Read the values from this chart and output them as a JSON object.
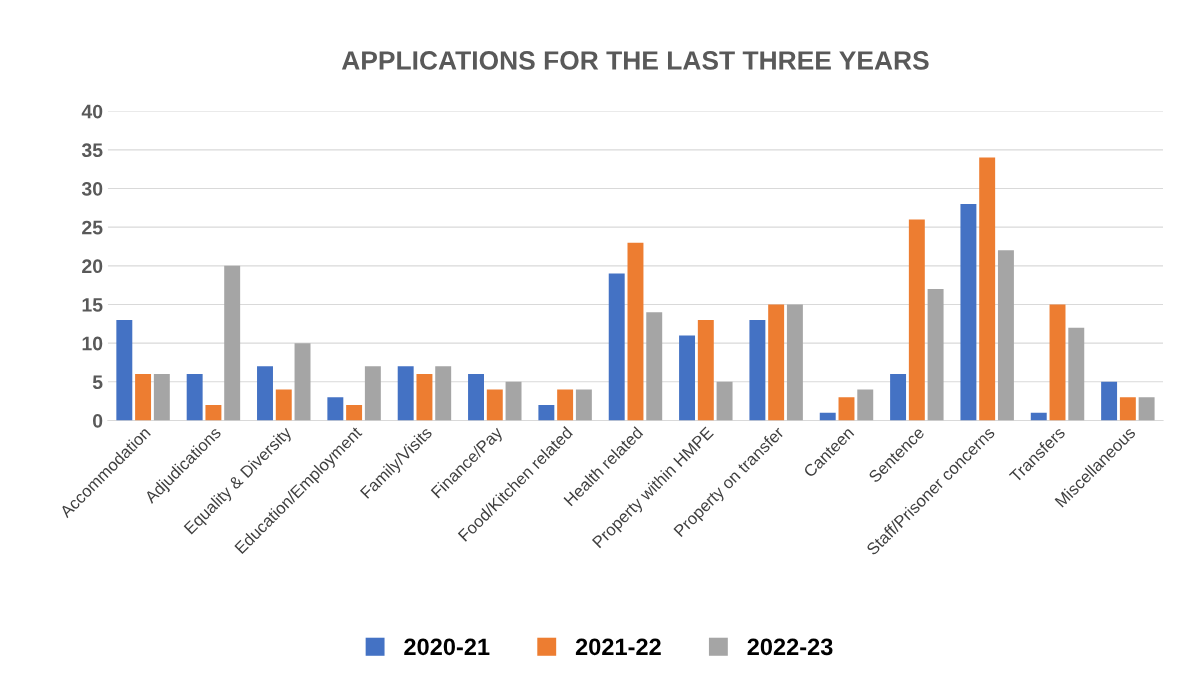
{
  "chart_data": {
    "type": "bar",
    "title": "APPLICATIONS FOR THE LAST THREE YEARS",
    "categories": [
      "Accommodation",
      "Adjudications",
      "Equality & Diversity",
      "Education/Employment",
      "Family/Visits",
      "Finance/Pay",
      "Food/Kitchen related",
      "Health related",
      "Property within HMPE",
      "Property on transfer",
      "Canteen",
      "Sentence",
      "Staff/Prisoner concerns",
      "Transfers",
      "Miscellaneous"
    ],
    "series": [
      {
        "name": "2020-21",
        "color": "#4472c4",
        "values": [
          13,
          6,
          7,
          3,
          7,
          6,
          2,
          19,
          11,
          13,
          1,
          6,
          28,
          1,
          5
        ]
      },
      {
        "name": "2021-22",
        "color": "#ed7d31",
        "values": [
          6,
          2,
          4,
          2,
          6,
          4,
          4,
          23,
          13,
          15,
          3,
          26,
          34,
          15,
          3
        ]
      },
      {
        "name": "2022-23",
        "color": "#a5a5a5",
        "values": [
          6,
          20,
          10,
          7,
          7,
          5,
          4,
          14,
          5,
          15,
          4,
          17,
          22,
          12,
          3
        ]
      }
    ],
    "ylim": [
      0,
      40
    ],
    "yticks": [
      0,
      5,
      10,
      15,
      20,
      25,
      30,
      35,
      40
    ],
    "grid": "y",
    "legend": "bottom"
  }
}
